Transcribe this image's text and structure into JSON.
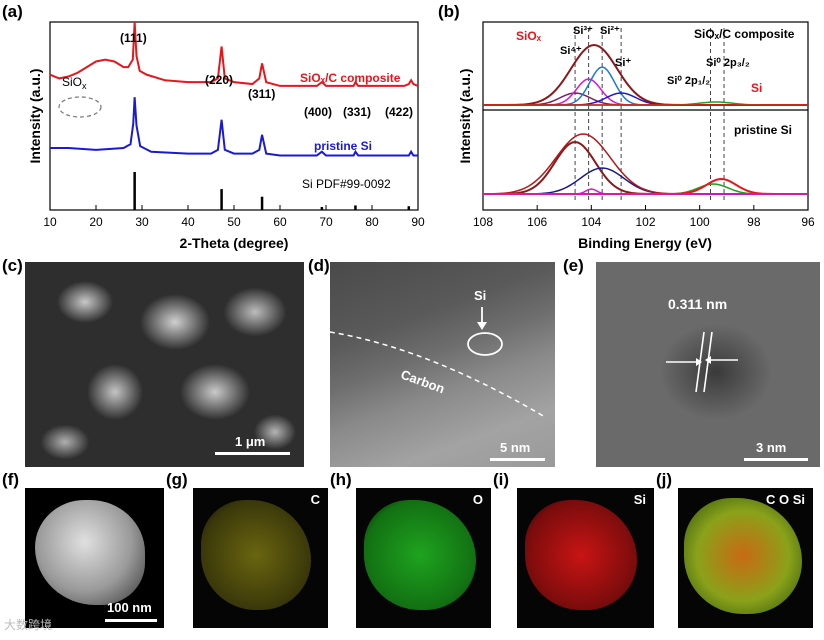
{
  "panels": {
    "a": "(a)",
    "b": "(b)",
    "c": "(c)",
    "d": "(d)",
    "e": "(e)",
    "f": "(f)",
    "g": "(g)",
    "h": "(h)",
    "i": "(i)",
    "j": "(j)"
  },
  "chart_data": [
    {
      "type": "line",
      "panel": "a",
      "xlabel": "2-Theta (degree)",
      "ylabel": "Intensity (a.u.)",
      "xlim": [
        10,
        90
      ],
      "xticks": [
        "10",
        "20",
        "30",
        "40",
        "50",
        "60",
        "70",
        "80",
        "90"
      ],
      "series": [
        {
          "name": "SiOx/C composite",
          "color": "#e8161c",
          "x": [
            10,
            12,
            14,
            16,
            18,
            20,
            22,
            24,
            26,
            27,
            28,
            28.4,
            28.8,
            29.5,
            31,
            35,
            40,
            45,
            46.5,
            47.3,
            48,
            50,
            54,
            55.5,
            56.1,
            57,
            60,
            65,
            68,
            69.1,
            70,
            74,
            76,
            76.4,
            77,
            80,
            85,
            87,
            88,
            88.5,
            89,
            90
          ],
          "y": [
            0.72,
            0.7,
            0.71,
            0.73,
            0.76,
            0.79,
            0.8,
            0.79,
            0.76,
            0.76,
            0.8,
            1.0,
            0.82,
            0.74,
            0.72,
            0.69,
            0.68,
            0.68,
            0.7,
            0.87,
            0.7,
            0.68,
            0.67,
            0.7,
            0.78,
            0.68,
            0.66,
            0.66,
            0.66,
            0.68,
            0.66,
            0.66,
            0.66,
            0.68,
            0.66,
            0.66,
            0.66,
            0.66,
            0.67,
            0.69,
            0.67,
            0.66
          ]
        },
        {
          "name": "pristine Si",
          "color": "#1a1ad6",
          "x": [
            10,
            14,
            20,
            26,
            27.5,
            28.1,
            28.4,
            28.8,
            29.6,
            32,
            40,
            45,
            46.5,
            47.3,
            48,
            50,
            54,
            55.5,
            56.1,
            57,
            60,
            68,
            69.1,
            70,
            74,
            76,
            76.4,
            77,
            85,
            88,
            88.5,
            89,
            90
          ],
          "y": [
            0.33,
            0.33,
            0.32,
            0.33,
            0.35,
            0.46,
            0.6,
            0.45,
            0.34,
            0.31,
            0.3,
            0.3,
            0.32,
            0.48,
            0.32,
            0.3,
            0.3,
            0.32,
            0.4,
            0.3,
            0.29,
            0.29,
            0.31,
            0.29,
            0.29,
            0.29,
            0.31,
            0.29,
            0.29,
            0.29,
            0.31,
            0.29,
            0.29
          ]
        }
      ],
      "reference": {
        "name": "Si PDF#99-0092",
        "x": [
          28.4,
          47.3,
          56.1,
          69.1,
          76.4,
          88.0
        ],
        "height": [
          1.0,
          0.55,
          0.35,
          0.08,
          0.12,
          0.1
        ]
      },
      "annotations": [
        "SiOx",
        "(111)",
        "(220)",
        "(311)",
        "(400)",
        "(331)",
        "(422)"
      ]
    },
    {
      "type": "line",
      "panel": "b",
      "xlabel": "Binding Energy (eV)",
      "ylabel": "Intensity (a.u.)",
      "xlim": [
        108,
        96
      ],
      "xticks": [
        "108",
        "106",
        "104",
        "102",
        "100",
        "98",
        "96"
      ],
      "annotations": [
        "SiOx",
        "Si",
        "SiOx/C composite",
        "pristine Si",
        "Si4+",
        "Si3+",
        "Si2+",
        "Si+",
        "Si0 2p1/2",
        "Si0 2p3/2"
      ],
      "reference_lines_eV": [
        104.6,
        104.1,
        103.6,
        102.9,
        99.6,
        99.1
      ]
    }
  ],
  "panel_text": {
    "a_lab_sio": "SiO",
    "a_lab_sio_sub": "x",
    "a_lab_111": "(111)",
    "a_lab_220": "(220)",
    "a_lab_311": "(311)",
    "a_lab_400": "(400)",
    "a_lab_331": "(331)",
    "a_lab_422": "(422)",
    "a_leg_red": "SiOₓ/C composite",
    "a_leg_blue": "pristine Si",
    "a_leg_ref": "Si PDF#99-0092",
    "b_sio": "SiOₓ",
    "b_si": "Si",
    "b_composite": "SiOₓ/C composite",
    "b_pristine": "pristine Si",
    "b_si4": "Si⁴⁺",
    "b_si3": "Si³⁺",
    "b_si2": "Si²⁺",
    "b_si1": "Si⁺",
    "b_si0a": "Si⁰ 2p₁/₂",
    "b_si0b": "Si⁰ 2p₃/₂"
  },
  "micrographs": {
    "c_scale": "1 μm",
    "d_si": "Si",
    "d_carbon": "Carbon",
    "d_scale": "5 nm",
    "e_dspacing": "0.311 nm",
    "e_scale": "3 nm",
    "f_scale": "100 nm",
    "g_el": "C",
    "h_el": "O",
    "i_el": "Si",
    "j_el": "C O Si"
  },
  "colors": {
    "composite": "#e8161c",
    "pristine": "#1a1ad6",
    "map_c": "#c8c21a",
    "map_o": "#1fa31f",
    "map_si": "#c81414"
  },
  "watermark": "大数跨境"
}
